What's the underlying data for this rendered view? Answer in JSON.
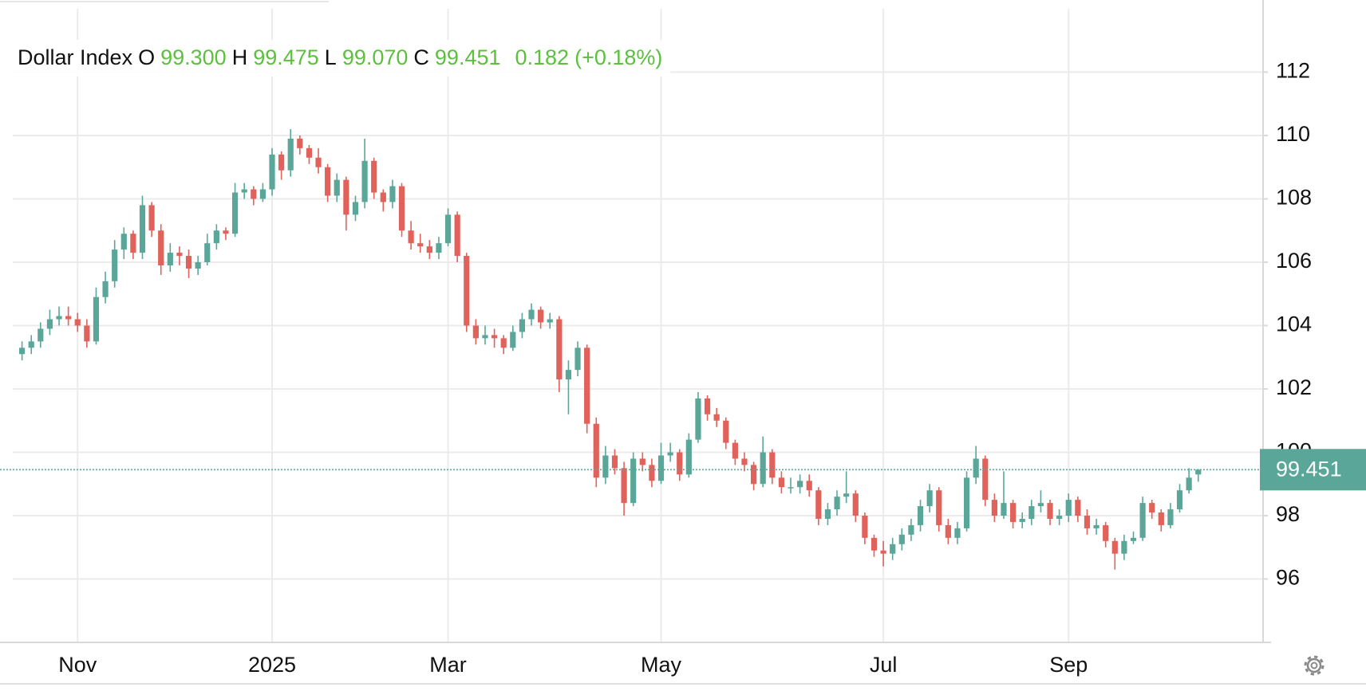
{
  "chart_data": {
    "type": "candlestick",
    "header": {
      "name": "Dollar Index",
      "ohlc_labels": [
        "O",
        "H",
        "L",
        "C"
      ],
      "ohlc_texts": [
        "99.300",
        "99.475",
        "99.070",
        "99.451"
      ],
      "change": "0.182",
      "change_pct": "(+0.18%)"
    },
    "last_price_label": "99.451",
    "up_color": "#5aa79a",
    "down_color": "#e0625b",
    "text_up_color": "#5cc03e",
    "grid": true,
    "ylim": [
      94,
      114
    ],
    "yticks": [
      96,
      98,
      100,
      102,
      104,
      106,
      108,
      110,
      112
    ],
    "xlim": [
      -1,
      134
    ],
    "xticks": [
      {
        "value": 6,
        "label": "Nov"
      },
      {
        "value": 27,
        "label": "2025"
      },
      {
        "value": 46,
        "label": "Mar"
      },
      {
        "value": 69,
        "label": "May"
      },
      {
        "value": 93,
        "label": "Jul"
      },
      {
        "value": 113,
        "label": "Sep"
      }
    ],
    "series": [
      {
        "name": "Dollar Index",
        "values": [
          [
            103.1,
            103.5,
            102.9,
            103.3
          ],
          [
            103.3,
            103.7,
            103.1,
            103.5
          ],
          [
            103.5,
            104.1,
            103.3,
            103.9
          ],
          [
            103.9,
            104.5,
            103.7,
            104.2
          ],
          [
            104.2,
            104.6,
            104.0,
            104.3
          ],
          [
            104.3,
            104.6,
            104.0,
            104.2
          ],
          [
            104.2,
            104.4,
            103.8,
            104.0
          ],
          [
            104.0,
            104.2,
            103.3,
            103.5
          ],
          [
            103.5,
            105.2,
            103.4,
            104.9
          ],
          [
            104.9,
            105.7,
            104.7,
            105.4
          ],
          [
            105.4,
            106.7,
            105.2,
            106.4
          ],
          [
            106.4,
            107.1,
            106.1,
            106.9
          ],
          [
            106.9,
            107.0,
            106.1,
            106.3
          ],
          [
            106.3,
            108.1,
            106.1,
            107.8
          ],
          [
            107.8,
            107.9,
            106.8,
            107.0
          ],
          [
            107.0,
            107.2,
            105.6,
            105.9
          ],
          [
            105.9,
            106.6,
            105.7,
            106.3
          ],
          [
            106.3,
            106.5,
            105.9,
            106.2
          ],
          [
            106.2,
            106.4,
            105.5,
            105.8
          ],
          [
            105.8,
            106.2,
            105.6,
            106.0
          ],
          [
            106.0,
            106.9,
            105.9,
            106.6
          ],
          [
            106.6,
            107.2,
            106.4,
            107.0
          ],
          [
            107.0,
            107.1,
            106.7,
            106.9
          ],
          [
            106.9,
            108.5,
            106.8,
            108.2
          ],
          [
            108.2,
            108.5,
            108.0,
            108.3
          ],
          [
            108.3,
            108.4,
            107.8,
            108.0
          ],
          [
            108.0,
            108.5,
            107.9,
            108.3
          ],
          [
            108.3,
            109.6,
            108.1,
            109.4
          ],
          [
            109.4,
            109.5,
            108.6,
            108.9
          ],
          [
            108.9,
            110.2,
            108.7,
            109.9
          ],
          [
            109.9,
            110.0,
            109.4,
            109.6
          ],
          [
            109.6,
            109.7,
            109.1,
            109.3
          ],
          [
            109.3,
            109.6,
            108.8,
            109.0
          ],
          [
            109.0,
            109.1,
            107.9,
            108.1
          ],
          [
            108.1,
            108.8,
            107.9,
            108.6
          ],
          [
            108.6,
            108.7,
            107.0,
            107.5
          ],
          [
            107.5,
            108.1,
            107.3,
            107.9
          ],
          [
            107.9,
            109.9,
            107.7,
            109.2
          ],
          [
            109.2,
            109.3,
            108.0,
            108.2
          ],
          [
            108.2,
            108.3,
            107.6,
            107.9
          ],
          [
            107.9,
            108.6,
            107.7,
            108.4
          ],
          [
            108.4,
            108.5,
            106.8,
            107.0
          ],
          [
            107.0,
            107.3,
            106.4,
            106.6
          ],
          [
            106.6,
            106.9,
            106.3,
            106.5
          ],
          [
            106.5,
            106.7,
            106.1,
            106.3
          ],
          [
            106.3,
            106.8,
            106.1,
            106.6
          ],
          [
            106.6,
            107.7,
            106.5,
            107.5
          ],
          [
            107.5,
            107.6,
            106.0,
            106.2
          ],
          [
            106.2,
            106.3,
            103.8,
            104.0
          ],
          [
            104.0,
            104.2,
            103.4,
            103.6
          ],
          [
            103.6,
            104.0,
            103.4,
            103.7
          ],
          [
            103.7,
            103.9,
            103.3,
            103.6
          ],
          [
            103.6,
            103.7,
            103.1,
            103.3
          ],
          [
            103.3,
            104.0,
            103.2,
            103.8
          ],
          [
            103.8,
            104.4,
            103.6,
            104.2
          ],
          [
            104.2,
            104.7,
            104.0,
            104.5
          ],
          [
            104.5,
            104.6,
            103.9,
            104.1
          ],
          [
            104.1,
            104.4,
            103.9,
            104.2
          ],
          [
            104.2,
            104.3,
            101.9,
            102.3
          ],
          [
            102.3,
            102.9,
            101.2,
            102.6
          ],
          [
            102.6,
            103.5,
            102.4,
            103.3
          ],
          [
            103.3,
            103.4,
            100.6,
            100.9
          ],
          [
            100.9,
            101.1,
            98.9,
            99.2
          ],
          [
            99.2,
            100.2,
            99.0,
            99.9
          ],
          [
            99.9,
            100.1,
            99.3,
            99.5
          ],
          [
            99.5,
            99.7,
            98.0,
            98.4
          ],
          [
            98.4,
            100.0,
            98.3,
            99.8
          ],
          [
            99.8,
            100.0,
            99.4,
            99.6
          ],
          [
            99.6,
            99.8,
            98.9,
            99.1
          ],
          [
            99.1,
            100.3,
            99.0,
            99.9
          ],
          [
            99.9,
            100.3,
            99.7,
            100.0
          ],
          [
            100.0,
            100.1,
            99.1,
            99.3
          ],
          [
            99.3,
            100.6,
            99.2,
            100.4
          ],
          [
            100.4,
            101.9,
            100.3,
            101.7
          ],
          [
            101.7,
            101.8,
            101.0,
            101.2
          ],
          [
            101.2,
            101.4,
            100.8,
            101.0
          ],
          [
            101.0,
            101.1,
            100.1,
            100.3
          ],
          [
            100.3,
            100.4,
            99.6,
            99.8
          ],
          [
            99.8,
            100.0,
            99.4,
            99.6
          ],
          [
            99.6,
            99.7,
            98.8,
            99.0
          ],
          [
            99.0,
            100.5,
            98.9,
            100.0
          ],
          [
            100.0,
            100.1,
            99.0,
            99.2
          ],
          [
            99.2,
            99.4,
            98.7,
            98.9
          ],
          [
            98.9,
            99.2,
            98.7,
            98.9
          ],
          [
            98.9,
            99.3,
            98.7,
            99.1
          ],
          [
            99.1,
            99.3,
            98.6,
            98.8
          ],
          [
            98.8,
            98.9,
            97.7,
            97.9
          ],
          [
            97.9,
            98.4,
            97.7,
            98.2
          ],
          [
            98.2,
            98.8,
            98.0,
            98.6
          ],
          [
            98.6,
            99.4,
            98.4,
            98.7
          ],
          [
            98.7,
            98.8,
            97.8,
            98.0
          ],
          [
            98.0,
            98.1,
            97.1,
            97.3
          ],
          [
            97.3,
            97.4,
            96.7,
            96.9
          ],
          [
            96.9,
            97.2,
            96.4,
            96.8
          ],
          [
            96.8,
            97.3,
            96.6,
            97.1
          ],
          [
            97.1,
            97.6,
            96.9,
            97.4
          ],
          [
            97.4,
            97.9,
            97.2,
            97.7
          ],
          [
            97.7,
            98.5,
            97.5,
            98.3
          ],
          [
            98.3,
            99.0,
            98.1,
            98.8
          ],
          [
            98.8,
            98.9,
            97.5,
            97.7
          ],
          [
            97.7,
            97.9,
            97.1,
            97.3
          ],
          [
            97.3,
            97.8,
            97.1,
            97.6
          ],
          [
            97.6,
            99.4,
            97.5,
            99.2
          ],
          [
            99.2,
            100.2,
            99.0,
            99.8
          ],
          [
            99.8,
            99.9,
            98.3,
            98.5
          ],
          [
            98.5,
            98.7,
            97.8,
            98.0
          ],
          [
            98.0,
            99.4,
            97.9,
            98.4
          ],
          [
            98.4,
            98.5,
            97.6,
            97.8
          ],
          [
            97.8,
            98.1,
            97.6,
            97.9
          ],
          [
            97.9,
            98.5,
            97.7,
            98.3
          ],
          [
            98.3,
            98.8,
            98.1,
            98.4
          ],
          [
            98.4,
            98.5,
            97.7,
            97.9
          ],
          [
            97.9,
            98.2,
            97.7,
            98.0
          ],
          [
            98.0,
            98.7,
            97.8,
            98.5
          ],
          [
            98.5,
            98.6,
            97.8,
            98.0
          ],
          [
            98.0,
            98.2,
            97.4,
            97.6
          ],
          [
            97.6,
            97.9,
            97.4,
            97.7
          ],
          [
            97.7,
            97.8,
            97.0,
            97.2
          ],
          [
            97.2,
            97.3,
            96.3,
            96.8
          ],
          [
            96.8,
            97.4,
            96.6,
            97.2
          ],
          [
            97.2,
            97.5,
            97.1,
            97.3
          ],
          [
            97.3,
            98.6,
            97.2,
            98.4
          ],
          [
            98.4,
            98.5,
            97.9,
            98.1
          ],
          [
            98.1,
            98.2,
            97.5,
            97.7
          ],
          [
            97.7,
            98.4,
            97.6,
            98.2
          ],
          [
            98.2,
            99.0,
            98.1,
            98.8
          ],
          [
            98.8,
            99.5,
            98.7,
            99.2
          ],
          [
            99.3,
            99.475,
            99.07,
            99.451
          ]
        ]
      }
    ]
  }
}
